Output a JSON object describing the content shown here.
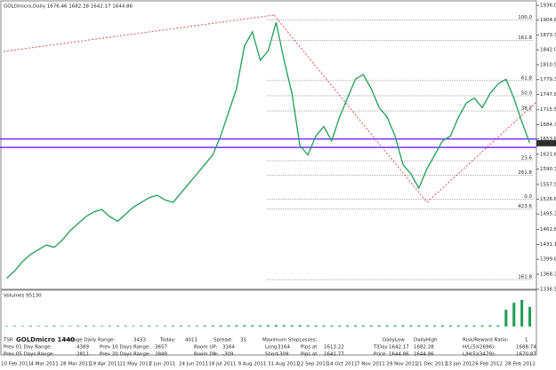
{
  "chart_data": {
    "type": "line",
    "title": "GOLDmicro,Daily  1676.46 1682.28 1642.17 1644.86",
    "color": "#1f9d55",
    "values": [
      1360,
      1375,
      1395,
      1410,
      1420,
      1430,
      1425,
      1440,
      1460,
      1475,
      1490,
      1500,
      1505,
      1490,
      1480,
      1495,
      1510,
      1520,
      1530,
      1535,
      1525,
      1520,
      1540,
      1560,
      1580,
      1600,
      1620,
      1660,
      1710,
      1760,
      1850,
      1880,
      1820,
      1840,
      1900,
      1820,
      1750,
      1640,
      1620,
      1660,
      1680,
      1650,
      1700,
      1740,
      1780,
      1790,
      1760,
      1720,
      1700,
      1660,
      1600,
      1580,
      1550,
      1590,
      1620,
      1650,
      1660,
      1700,
      1730,
      1740,
      1720,
      1750,
      1770,
      1780,
      1740,
      1690,
      1645
    ],
    "ylim": [
      1336.5,
      1936.05
    ],
    "yticks": [
      {
        "value": 1936.05,
        "label": "1936.05"
      },
      {
        "value": 1904.8,
        "label": "1904.80"
      },
      {
        "value": 1873.3,
        "label": "1873.30"
      },
      {
        "value": 1842.05,
        "label": "1842.05"
      },
      {
        "value": 1810.55,
        "label": "1810.55"
      },
      {
        "value": 1779.3,
        "label": "1779.30"
      },
      {
        "value": 1747.8,
        "label": "1747.80"
      },
      {
        "value": 1715.55,
        "label": "1715.55"
      },
      {
        "value": 1684.3,
        "label": "1684.30"
      },
      {
        "value": 1653.8,
        "label": "1653.80"
      },
      {
        "value": 1621.6,
        "label": "1621.60"
      },
      {
        "value": 1590.3,
        "label": "1590.30"
      },
      {
        "value": 1557.9,
        "label": "1557.90"
      },
      {
        "value": 1526.6,
        "label": "1526.60"
      },
      {
        "value": 1495.35,
        "label": "1495.35"
      },
      {
        "value": 1462.85,
        "label": "1462.85"
      },
      {
        "value": 1431.1,
        "label": "1431.10"
      },
      {
        "value": 1399.85,
        "label": "1399.85"
      },
      {
        "value": 1368.35,
        "label": "1368.35"
      },
      {
        "value": 1336.5,
        "label": "1336.50"
      }
    ],
    "levels": [
      {
        "value": 1653.8,
        "color": "#7b2cff"
      },
      {
        "value": 1636,
        "color": "#7b2cff"
      }
    ],
    "current_price": {
      "value": 1644.86,
      "label": "1644.86"
    },
    "fib_levels": [
      {
        "value": 1904.8,
        "label": "100.0"
      },
      {
        "value": 1862,
        "label": "161.8"
      },
      {
        "value": 1777,
        "label": "61.8"
      },
      {
        "value": 1745,
        "label": "50.0"
      },
      {
        "value": 1713,
        "label": "38.2"
      },
      {
        "value": 1608,
        "label": "23.6"
      },
      {
        "value": 1577,
        "label": "261.8"
      },
      {
        "value": 1527,
        "label": "0.0"
      },
      {
        "value": 1506,
        "label": "423.6"
      },
      {
        "value": 1357,
        "label": "161.8"
      }
    ],
    "volume_label": "Volumes 95130",
    "volume_ylim": [
      0,
      95130
    ],
    "volume": [
      2100,
      2300,
      2000,
      2500,
      2200,
      2400,
      2600,
      2300,
      2100,
      2500,
      2700,
      2400,
      2200,
      2600,
      2800,
      2500,
      2300,
      2400,
      2600,
      2200,
      2500,
      2700,
      2900,
      2600,
      2800,
      3100,
      3300,
      3600,
      3900,
      4200,
      4600,
      4300,
      4100,
      4400,
      4800,
      4500,
      4200,
      4700,
      4300,
      3900,
      3700,
      3600,
      3800,
      4000,
      3700,
      3500,
      3600,
      3800,
      3900,
      4100,
      4300,
      4000,
      3800,
      3600,
      3900,
      4100,
      4000,
      3800,
      3700,
      3900,
      4000,
      4200,
      4100,
      60000,
      85000,
      95130,
      70000
    ],
    "volume_color": "#1f9d55",
    "x_labels": [
      "10 Feb 2011",
      "4 Mar 2011",
      "28 Mar 2011",
      "19 Apr 2011",
      "11 May 2011",
      "2 Jun 2011",
      "24 Jun 2011",
      "18 Jul 2011",
      "9 Aug 2011",
      "31 Aug 2011",
      "22 Sep 2011",
      "14 Oct 2011",
      "7 Nov 2011",
      "29 Nov 2011",
      "21 Dec 2011",
      "13 Jan 2012",
      "6 Feb 2012",
      "28 Feb 2012"
    ],
    "panel_texts": [
      "TSR",
      "GOLDmicro 1440",
      "Average Daily Range:",
      "3433",
      "Today:",
      "4011",
      "Spread:",
      "31",
      "Maximum StopLosses;",
      "DailyLow",
      "DailyHigh",
      "Risk/Reward Ratio:",
      "1",
      "Prev 01 Day Range:",
      "4389",
      "Prev 10 Days Range:",
      "3657",
      "Room UP:",
      "3164",
      "Long",
      "3164",
      "Pips at",
      "1613.22",
      "TiDay",
      "1642.17",
      "1682.28",
      "H/L(5)(2696):",
      "1688.74",
      "Prev 05 Days Range:",
      "2811",
      "Prev 20 Days Range:",
      "2849",
      "Room DN:",
      "-309",
      "Short",
      "-309",
      "Pips at",
      "1641.77",
      "Price",
      "1644.86",
      "1644.86",
      "L/H(5)(3479):",
      "1670.87"
    ]
  }
}
